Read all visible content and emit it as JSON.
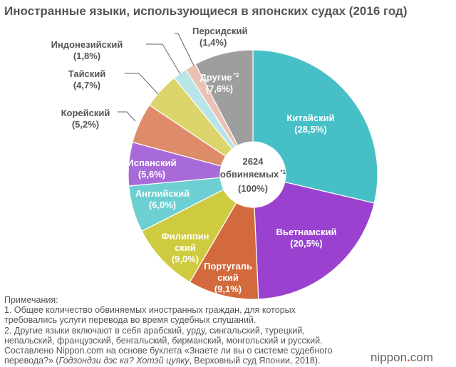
{
  "chart_data": {
    "type": "pie",
    "title": "Иностранные языки, использующиеся в японских судах (2016 год)",
    "center_label": {
      "count": "2624",
      "unit": "обвиняемых",
      "note": "*1",
      "percent": "(100%)"
    },
    "slices": [
      {
        "name": "Китайский",
        "value": 28.5,
        "label": "(28,5%)",
        "color": "#47bfc6"
      },
      {
        "name": "Вьетнамский",
        "value": 20.5,
        "label": "(20,5%)",
        "color": "#9a42cf"
      },
      {
        "name": "Португальский",
        "value": 9.1,
        "label": "(9,1%)",
        "color": "#d26a3e",
        "lines": [
          "Португаль",
          "ский"
        ]
      },
      {
        "name": "Филиппинский",
        "value": 9.0,
        "label": "(9,0%)",
        "color": "#cfcb41",
        "lines": [
          "Филиппин",
          "ский"
        ]
      },
      {
        "name": "Английский",
        "value": 6.0,
        "label": "(6,0%)",
        "color": "#6dcfd1"
      },
      {
        "name": "Испанский",
        "value": 5.6,
        "label": "(5,6%)",
        "color": "#a86ad8"
      },
      {
        "name": "Корейский",
        "value": 5.2,
        "label": "(5,2%)",
        "color": "#de8b69"
      },
      {
        "name": "Тайский",
        "value": 4.7,
        "label": "(4,7%)",
        "color": "#dcd56b"
      },
      {
        "name": "Индонезийский",
        "value": 1.8,
        "label": "(1,8%)",
        "color": "#b9e4e8"
      },
      {
        "name": "Персидский",
        "value": 1.4,
        "label": "(1,4%)",
        "color": "#ebc1b4"
      },
      {
        "name": "Другие",
        "value": 7.6,
        "label": "(7,6%)",
        "color": "#9e9e9e",
        "note": "*2"
      }
    ]
  },
  "notes": {
    "heading": "Примечания:",
    "lines": [
      "1. Общее количество обвиняемых иностранных граждан, для которых",
      "требовались услуги перевода во время судебных слушаний.",
      "2. Другие языки включают в себя арабский, урду, сингальский, турецкий,",
      "непальский, французский, бенгальский, бирманский, монгольский и русский.",
      "Составлено Nippon.com на основе буклета «Знаете ли вы о системе судебного"
    ],
    "last_pre": "перевода?» (",
    "last_italic": "Годзондзи дэс ка? Хотэй цуяку",
    "last_post": ", Верховный суд Японии, 2018)."
  },
  "logo": {
    "main": "nippon",
    "dot": ".",
    "suffix": "com"
  }
}
